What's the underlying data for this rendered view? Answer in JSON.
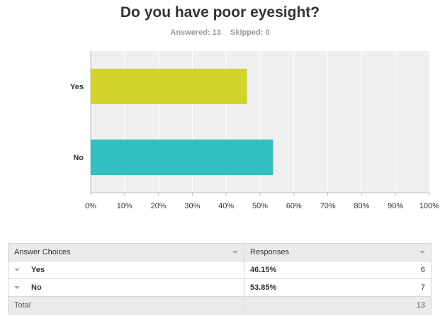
{
  "title": "Do you have poor eyesight?",
  "answered_label": "Answered: 13",
  "skipped_label": "Skipped: 0",
  "colors": {
    "bar_yes": "#d1d42a",
    "bar_no": "#33bec0",
    "plot_bg": "#efefef",
    "grid": "#ffffff"
  },
  "chart_data": {
    "type": "bar",
    "orientation": "horizontal",
    "title": "Do you have poor eyesight?",
    "categories": [
      "Yes",
      "No"
    ],
    "values": [
      46.15,
      53.85
    ],
    "xlim": [
      0,
      100
    ],
    "xticks": [
      "0%",
      "10%",
      "20%",
      "30%",
      "40%",
      "50%",
      "60%",
      "70%",
      "80%",
      "90%",
      "100%"
    ],
    "grid": true
  },
  "table": {
    "headers": {
      "choices": "Answer Choices",
      "responses": "Responses"
    },
    "rows": [
      {
        "choice": "Yes",
        "percent": "46.15%",
        "count": "6"
      },
      {
        "choice": "No",
        "percent": "53.85%",
        "count": "7"
      }
    ],
    "total_label": "Total",
    "total_count": "13"
  }
}
